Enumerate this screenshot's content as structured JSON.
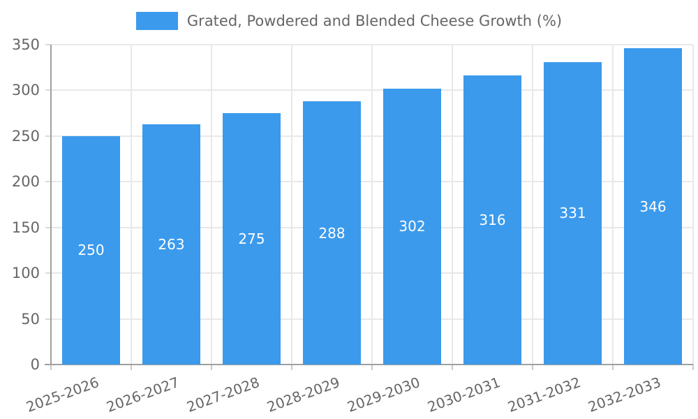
{
  "legend": {
    "label": "Grated, Powdered and Blended Cheese Growth (%)"
  },
  "colors": {
    "bar": "#3b9aec",
    "bar_label": "#ffffff",
    "axis_text": "#666666",
    "grid": "#e8e8e8",
    "axis_line": "#9f9f9f"
  },
  "chart_data": {
    "type": "bar",
    "title": "",
    "legend_entries": [
      "Grated, Powdered and Blended Cheese Growth (%)"
    ],
    "legend_position": "top",
    "categories": [
      "2025-2026",
      "2026-2027",
      "2027-2028",
      "2028-2029",
      "2029-2030",
      "2030-2031",
      "2031-2032",
      "2032-2033"
    ],
    "values": [
      250,
      263,
      275,
      288,
      302,
      316,
      331,
      346
    ],
    "xlabel": "",
    "ylabel": "",
    "ylim": [
      0,
      350
    ],
    "ytick_step": 50,
    "ytick_labels": [
      "0",
      "50",
      "100",
      "150",
      "200",
      "250",
      "300",
      "350"
    ],
    "grid": true,
    "bar_label_position": "inside-center",
    "x_tick_rotation_deg": -20
  }
}
